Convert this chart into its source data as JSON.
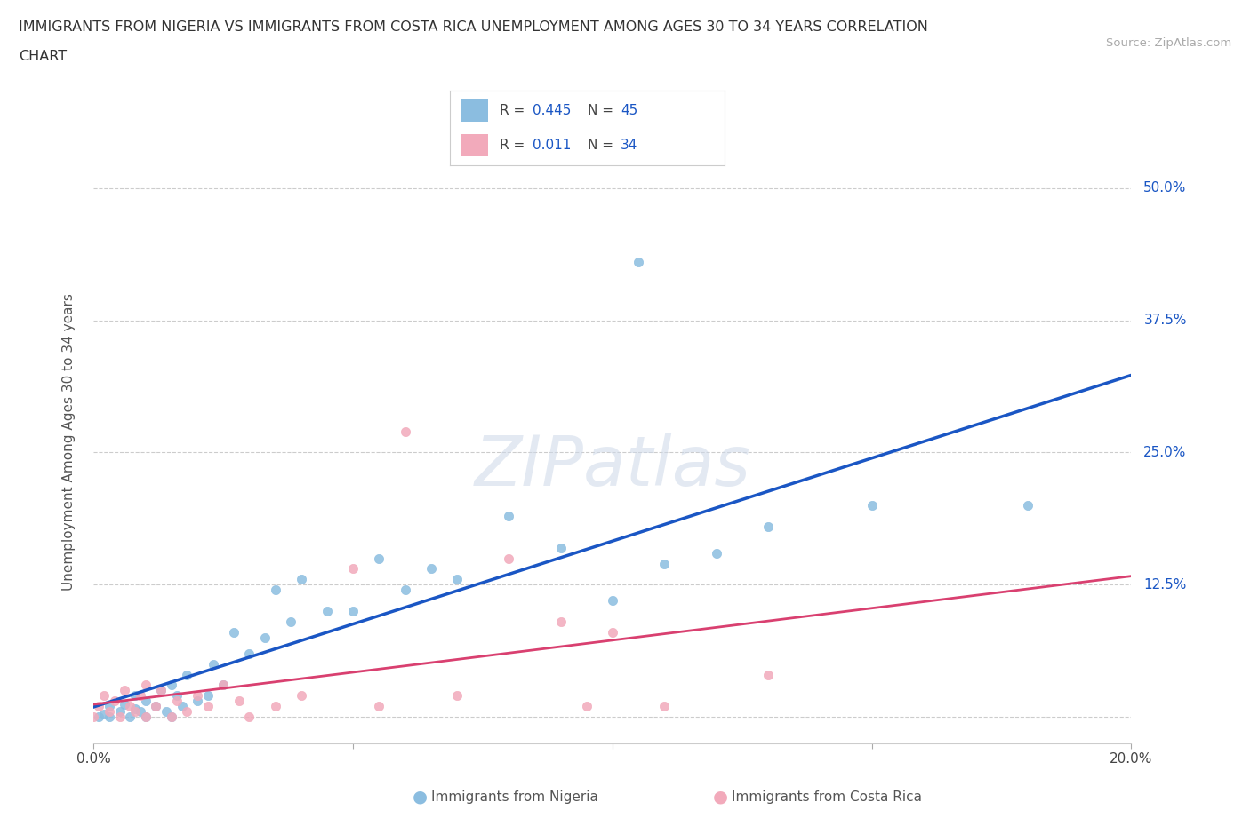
{
  "title_line1": "IMMIGRANTS FROM NIGERIA VS IMMIGRANTS FROM COSTA RICA UNEMPLOYMENT AMONG AGES 30 TO 34 YEARS CORRELATION",
  "title_line2": "CHART",
  "source": "Source: ZipAtlas.com",
  "ylabel": "Unemployment Among Ages 30 to 34 years",
  "xlim": [
    0.0,
    0.2
  ],
  "ylim": [
    -0.025,
    0.545
  ],
  "yticks": [
    0.0,
    0.125,
    0.25,
    0.375,
    0.5
  ],
  "ytick_labels": [
    "",
    "12.5%",
    "25.0%",
    "37.5%",
    "50.0%"
  ],
  "xticks": [
    0.0,
    0.05,
    0.1,
    0.15,
    0.2
  ],
  "nigeria_R": 0.445,
  "nigeria_N": 45,
  "costarica_R": 0.011,
  "costarica_N": 34,
  "nigeria_color": "#8bbde0",
  "costarica_color": "#f2aabb",
  "nigeria_line_color": "#1a56c4",
  "costarica_line_color": "#d94070",
  "nigeria_x": [
    0.001,
    0.002,
    0.003,
    0.003,
    0.005,
    0.006,
    0.007,
    0.008,
    0.008,
    0.009,
    0.01,
    0.01,
    0.012,
    0.013,
    0.014,
    0.015,
    0.015,
    0.016,
    0.017,
    0.018,
    0.02,
    0.022,
    0.023,
    0.025,
    0.027,
    0.03,
    0.033,
    0.035,
    0.038,
    0.04,
    0.045,
    0.05,
    0.055,
    0.06,
    0.065,
    0.07,
    0.08,
    0.09,
    0.1,
    0.105,
    0.11,
    0.12,
    0.13,
    0.15,
    0.18
  ],
  "nigeria_y": [
    0.0,
    0.003,
    0.0,
    0.01,
    0.005,
    0.012,
    0.0,
    0.008,
    0.02,
    0.005,
    0.0,
    0.015,
    0.01,
    0.025,
    0.005,
    0.0,
    0.03,
    0.02,
    0.01,
    0.04,
    0.015,
    0.02,
    0.05,
    0.03,
    0.08,
    0.06,
    0.075,
    0.12,
    0.09,
    0.13,
    0.1,
    0.1,
    0.15,
    0.12,
    0.14,
    0.13,
    0.19,
    0.16,
    0.11,
    0.43,
    0.145,
    0.155,
    0.18,
    0.2,
    0.2
  ],
  "costarica_x": [
    0.0,
    0.001,
    0.002,
    0.003,
    0.004,
    0.005,
    0.006,
    0.007,
    0.008,
    0.009,
    0.01,
    0.01,
    0.012,
    0.013,
    0.015,
    0.016,
    0.018,
    0.02,
    0.022,
    0.025,
    0.028,
    0.03,
    0.035,
    0.04,
    0.05,
    0.055,
    0.06,
    0.07,
    0.08,
    0.09,
    0.095,
    0.1,
    0.11,
    0.13
  ],
  "costarica_y": [
    0.0,
    0.01,
    0.02,
    0.005,
    0.015,
    0.0,
    0.025,
    0.01,
    0.005,
    0.02,
    0.0,
    0.03,
    0.01,
    0.025,
    0.0,
    0.015,
    0.005,
    0.02,
    0.01,
    0.03,
    0.015,
    0.0,
    0.01,
    0.02,
    0.14,
    0.01,
    0.27,
    0.02,
    0.15,
    0.09,
    0.01,
    0.08,
    0.01,
    0.04
  ],
  "watermark": "ZIPatlas"
}
